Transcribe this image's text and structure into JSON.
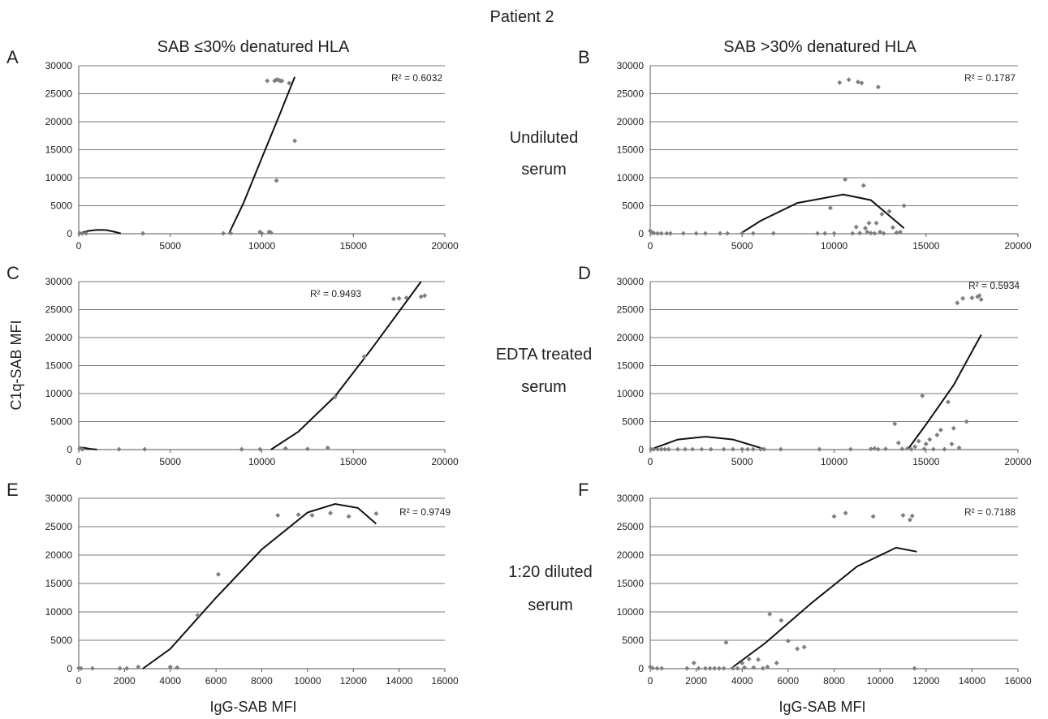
{
  "figure": {
    "title": "Patient 2",
    "col_headers": [
      "SAB ≤30% denatured HLA",
      "SAB >30% denatured HLA"
    ],
    "row_labels": [
      [
        "Undiluted",
        "serum"
      ],
      [
        "EDTA treated",
        "serum"
      ],
      [
        "1:20 diluted",
        "serum"
      ]
    ],
    "ylabel": "C1q-SAB MFI",
    "xlabel": "IgG-SAB MFI"
  },
  "chart_data": [
    {
      "panel": "A",
      "type": "scatter",
      "xlim": [
        0,
        20000
      ],
      "ylim": [
        0,
        30000
      ],
      "xticks": [
        0,
        5000,
        10000,
        15000,
        20000
      ],
      "yticks": [
        0,
        5000,
        10000,
        15000,
        20000,
        25000,
        30000
      ],
      "r2_label": "R² = 0.6032",
      "points": [
        [
          50,
          50
        ],
        [
          200,
          50
        ],
        [
          400,
          80
        ],
        [
          3500,
          50
        ],
        [
          7900,
          50
        ],
        [
          8300,
          100
        ],
        [
          9900,
          300
        ],
        [
          10000,
          50
        ],
        [
          10300,
          27300
        ],
        [
          10400,
          300
        ],
        [
          10500,
          200
        ],
        [
          10700,
          27300
        ],
        [
          10800,
          27500
        ],
        [
          10900,
          27500
        ],
        [
          11000,
          27300
        ],
        [
          11100,
          27300
        ],
        [
          11500,
          26900
        ],
        [
          11800,
          16600
        ],
        [
          10800,
          9500
        ]
      ],
      "trend_segments": [
        [
          [
            0,
            50
          ],
          [
            500,
            500
          ],
          [
            1000,
            700
          ],
          [
            1500,
            650
          ],
          [
            2000,
            300
          ],
          [
            2300,
            50
          ]
        ],
        [
          [
            8200,
            0
          ],
          [
            9000,
            5500
          ],
          [
            10000,
            13500
          ],
          [
            11000,
            21500
          ],
          [
            11800,
            28000
          ]
        ]
      ]
    },
    {
      "panel": "B",
      "type": "scatter",
      "xlim": [
        0,
        20000
      ],
      "ylim": [
        0,
        30000
      ],
      "xticks": [
        0,
        5000,
        10000,
        15000,
        20000
      ],
      "yticks": [
        0,
        5000,
        10000,
        15000,
        20000,
        25000,
        30000
      ],
      "r2_label": "R² = 0.1787",
      "points": [
        [
          0,
          500
        ],
        [
          100,
          200
        ],
        [
          200,
          100
        ],
        [
          400,
          50
        ],
        [
          600,
          50
        ],
        [
          900,
          50
        ],
        [
          1100,
          50
        ],
        [
          1800,
          50
        ],
        [
          2500,
          50
        ],
        [
          3000,
          50
        ],
        [
          3800,
          50
        ],
        [
          4200,
          50
        ],
        [
          5000,
          50
        ],
        [
          5600,
          50
        ],
        [
          6700,
          50
        ],
        [
          9100,
          50
        ],
        [
          9500,
          50
        ],
        [
          9800,
          4600
        ],
        [
          10000,
          50
        ],
        [
          10300,
          27000
        ],
        [
          10600,
          9700
        ],
        [
          10800,
          27500
        ],
        [
          11000,
          50
        ],
        [
          11200,
          1200
        ],
        [
          11300,
          27100
        ],
        [
          11400,
          100
        ],
        [
          11500,
          26900
        ],
        [
          11600,
          8600
        ],
        [
          11700,
          1000
        ],
        [
          11800,
          300
        ],
        [
          11900,
          1900
        ],
        [
          12000,
          100
        ],
        [
          12200,
          50
        ],
        [
          12300,
          1900
        ],
        [
          12400,
          26200
        ],
        [
          12500,
          300
        ],
        [
          12600,
          3500
        ],
        [
          12700,
          50
        ],
        [
          13000,
          4000
        ],
        [
          13200,
          1100
        ],
        [
          13400,
          200
        ],
        [
          13600,
          300
        ],
        [
          13800,
          5000
        ]
      ],
      "trend_segments": [
        [
          [
            4900,
            0
          ],
          [
            6000,
            2300
          ],
          [
            8000,
            5500
          ],
          [
            10500,
            7000
          ],
          [
            12000,
            6000
          ],
          [
            13800,
            1000
          ]
        ]
      ]
    },
    {
      "panel": "C",
      "type": "scatter",
      "xlim": [
        0,
        20000
      ],
      "ylim": [
        0,
        30000
      ],
      "xticks": [
        0,
        5000,
        10000,
        15000,
        20000
      ],
      "yticks": [
        0,
        5000,
        10000,
        15000,
        20000,
        25000,
        30000
      ],
      "r2_label": "R² = 0.9493",
      "points": [
        [
          50,
          200
        ],
        [
          200,
          50
        ],
        [
          2200,
          50
        ],
        [
          3600,
          50
        ],
        [
          8900,
          50
        ],
        [
          9900,
          50
        ],
        [
          11300,
          200
        ],
        [
          12500,
          100
        ],
        [
          13600,
          300
        ],
        [
          14000,
          9400
        ],
        [
          15600,
          16600
        ],
        [
          17200,
          26900
        ],
        [
          17500,
          27000
        ],
        [
          17900,
          27100
        ],
        [
          18700,
          27300
        ],
        [
          18900,
          27500
        ]
      ],
      "trend_segments": [
        [
          [
            0,
            400
          ],
          [
            300,
            300
          ],
          [
            600,
            150
          ],
          [
            1000,
            0
          ]
        ],
        [
          [
            10500,
            0
          ],
          [
            12000,
            3200
          ],
          [
            14000,
            9500
          ],
          [
            16000,
            18000
          ],
          [
            18700,
            30000
          ]
        ]
      ]
    },
    {
      "panel": "D",
      "type": "scatter",
      "xlim": [
        0,
        20000
      ],
      "ylim": [
        0,
        30000
      ],
      "xticks": [
        0,
        5000,
        10000,
        15000,
        20000
      ],
      "yticks": [
        0,
        5000,
        10000,
        15000,
        20000,
        25000,
        30000
      ],
      "r2_label": "R² = 0.5934",
      "points": [
        [
          50,
          50
        ],
        [
          200,
          50
        ],
        [
          400,
          50
        ],
        [
          600,
          50
        ],
        [
          800,
          50
        ],
        [
          1000,
          50
        ],
        [
          1500,
          50
        ],
        [
          1900,
          50
        ],
        [
          2300,
          50
        ],
        [
          2800,
          50
        ],
        [
          3300,
          50
        ],
        [
          4000,
          50
        ],
        [
          4500,
          50
        ],
        [
          5000,
          50
        ],
        [
          5300,
          50
        ],
        [
          5600,
          50
        ],
        [
          6000,
          50
        ],
        [
          6200,
          50
        ],
        [
          7100,
          50
        ],
        [
          9200,
          50
        ],
        [
          10900,
          50
        ],
        [
          12000,
          100
        ],
        [
          12200,
          200
        ],
        [
          12400,
          50
        ],
        [
          12800,
          100
        ],
        [
          13300,
          4600
        ],
        [
          13500,
          1200
        ],
        [
          13700,
          100
        ],
        [
          14000,
          200
        ],
        [
          14200,
          50
        ],
        [
          14400,
          500
        ],
        [
          14600,
          1500
        ],
        [
          14800,
          9600
        ],
        [
          14900,
          100
        ],
        [
          15000,
          1000
        ],
        [
          15200,
          1800
        ],
        [
          15400,
          50
        ],
        [
          15600,
          2600
        ],
        [
          15800,
          3500
        ],
        [
          16000,
          50
        ],
        [
          16200,
          8500
        ],
        [
          16400,
          1000
        ],
        [
          16500,
          3800
        ],
        [
          16700,
          26200
        ],
        [
          16800,
          300
        ],
        [
          17000,
          27000
        ],
        [
          17200,
          5000
        ],
        [
          17500,
          27100
        ],
        [
          17800,
          27300
        ],
        [
          17900,
          27500
        ],
        [
          18000,
          26800
        ]
      ],
      "trend_segments": [
        [
          [
            0,
            0
          ],
          [
            1500,
            1800
          ],
          [
            3000,
            2300
          ],
          [
            4500,
            1800
          ],
          [
            6300,
            0
          ]
        ],
        [
          [
            14000,
            0
          ],
          [
            15000,
            4500
          ],
          [
            16500,
            11500
          ],
          [
            18000,
            20500
          ]
        ]
      ]
    },
    {
      "panel": "E",
      "type": "scatter",
      "xlim": [
        0,
        16000
      ],
      "ylim": [
        0,
        30000
      ],
      "xticks": [
        0,
        2000,
        4000,
        6000,
        8000,
        10000,
        12000,
        14000,
        16000
      ],
      "yticks": [
        0,
        5000,
        10000,
        15000,
        20000,
        25000,
        30000
      ],
      "r2_label": "R² = 0.9749",
      "points": [
        [
          0,
          100
        ],
        [
          100,
          50
        ],
        [
          600,
          50
        ],
        [
          1800,
          50
        ],
        [
          2100,
          50
        ],
        [
          2600,
          300
        ],
        [
          4000,
          300
        ],
        [
          4300,
          200
        ],
        [
          5200,
          9400
        ],
        [
          6100,
          16600
        ],
        [
          8700,
          27000
        ],
        [
          9600,
          27100
        ],
        [
          10200,
          27000
        ],
        [
          11000,
          27400
        ],
        [
          11800,
          26800
        ],
        [
          13000,
          27300
        ]
      ],
      "trend_segments": [
        [
          [
            2800,
            0
          ],
          [
            4000,
            3500
          ],
          [
            6000,
            12500
          ],
          [
            8000,
            21000
          ],
          [
            10000,
            27500
          ],
          [
            11200,
            29000
          ],
          [
            12200,
            28300
          ],
          [
            13000,
            25500
          ]
        ]
      ]
    },
    {
      "panel": "F",
      "type": "scatter",
      "xlim": [
        0,
        16000
      ],
      "ylim": [
        0,
        30000
      ],
      "xticks": [
        0,
        2000,
        4000,
        6000,
        8000,
        10000,
        12000,
        14000,
        16000
      ],
      "yticks": [
        0,
        5000,
        10000,
        15000,
        20000,
        25000,
        30000
      ],
      "r2_label": "R² = 0.7188",
      "points": [
        [
          0,
          300
        ],
        [
          100,
          100
        ],
        [
          300,
          50
        ],
        [
          500,
          50
        ],
        [
          1600,
          50
        ],
        [
          1900,
          1000
        ],
        [
          2100,
          50
        ],
        [
          2400,
          50
        ],
        [
          2600,
          50
        ],
        [
          2800,
          50
        ],
        [
          3000,
          50
        ],
        [
          3200,
          50
        ],
        [
          3300,
          4600
        ],
        [
          3600,
          50
        ],
        [
          3800,
          50
        ],
        [
          4000,
          1000
        ],
        [
          4100,
          200
        ],
        [
          4300,
          1700
        ],
        [
          4500,
          200
        ],
        [
          4700,
          1600
        ],
        [
          4900,
          50
        ],
        [
          5100,
          300
        ],
        [
          5200,
          9600
        ],
        [
          5500,
          1000
        ],
        [
          5700,
          8500
        ],
        [
          6000,
          4900
        ],
        [
          6400,
          3500
        ],
        [
          6700,
          3800
        ],
        [
          8000,
          26800
        ],
        [
          8500,
          27400
        ],
        [
          9700,
          26800
        ],
        [
          11000,
          27000
        ],
        [
          11300,
          26200
        ],
        [
          11400,
          26900
        ],
        [
          11500,
          50
        ]
      ],
      "trend_segments": [
        [
          [
            3500,
            0
          ],
          [
            5000,
            4500
          ],
          [
            7000,
            11500
          ],
          [
            9000,
            18000
          ],
          [
            10700,
            21300
          ],
          [
            11600,
            20600
          ]
        ]
      ]
    }
  ]
}
